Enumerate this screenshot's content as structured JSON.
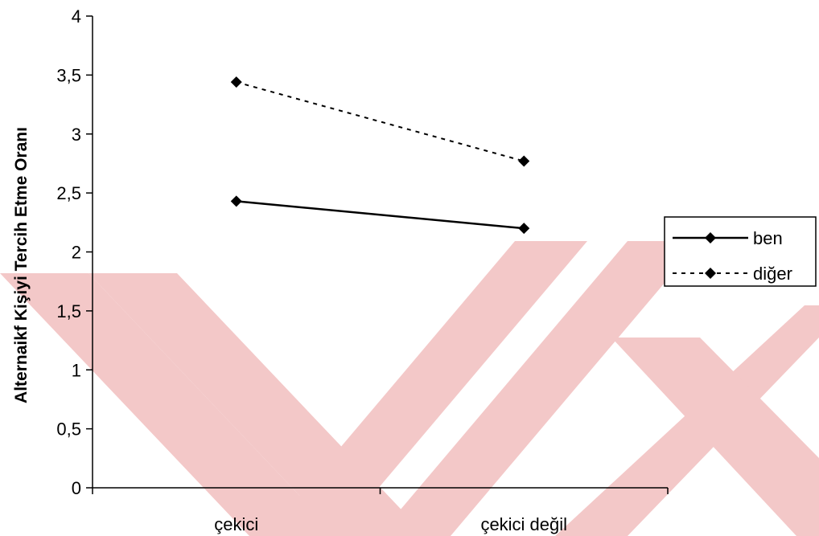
{
  "chart_data": {
    "type": "line",
    "title": "",
    "xlabel": "",
    "ylabel": "Alternaikf Kişiyi Tercih Etme Oranı",
    "categories": [
      "çekici",
      "çekici değil"
    ],
    "series": [
      {
        "name": "ben",
        "values": [
          2.43,
          2.2
        ],
        "line_style": "solid",
        "marker": "diamond"
      },
      {
        "name": "diğer",
        "values": [
          3.44,
          2.77
        ],
        "line_style": "dashed",
        "marker": "diamond"
      }
    ],
    "ylim": [
      0,
      4
    ],
    "y_ticks": [
      "0",
      "0,5",
      "1",
      "1,5",
      "2",
      "2,5",
      "3",
      "3,5",
      "4"
    ],
    "grid": false,
    "legend_position": "right"
  },
  "colors": {
    "line": "#000000",
    "watermark": "#f3c8c8"
  }
}
